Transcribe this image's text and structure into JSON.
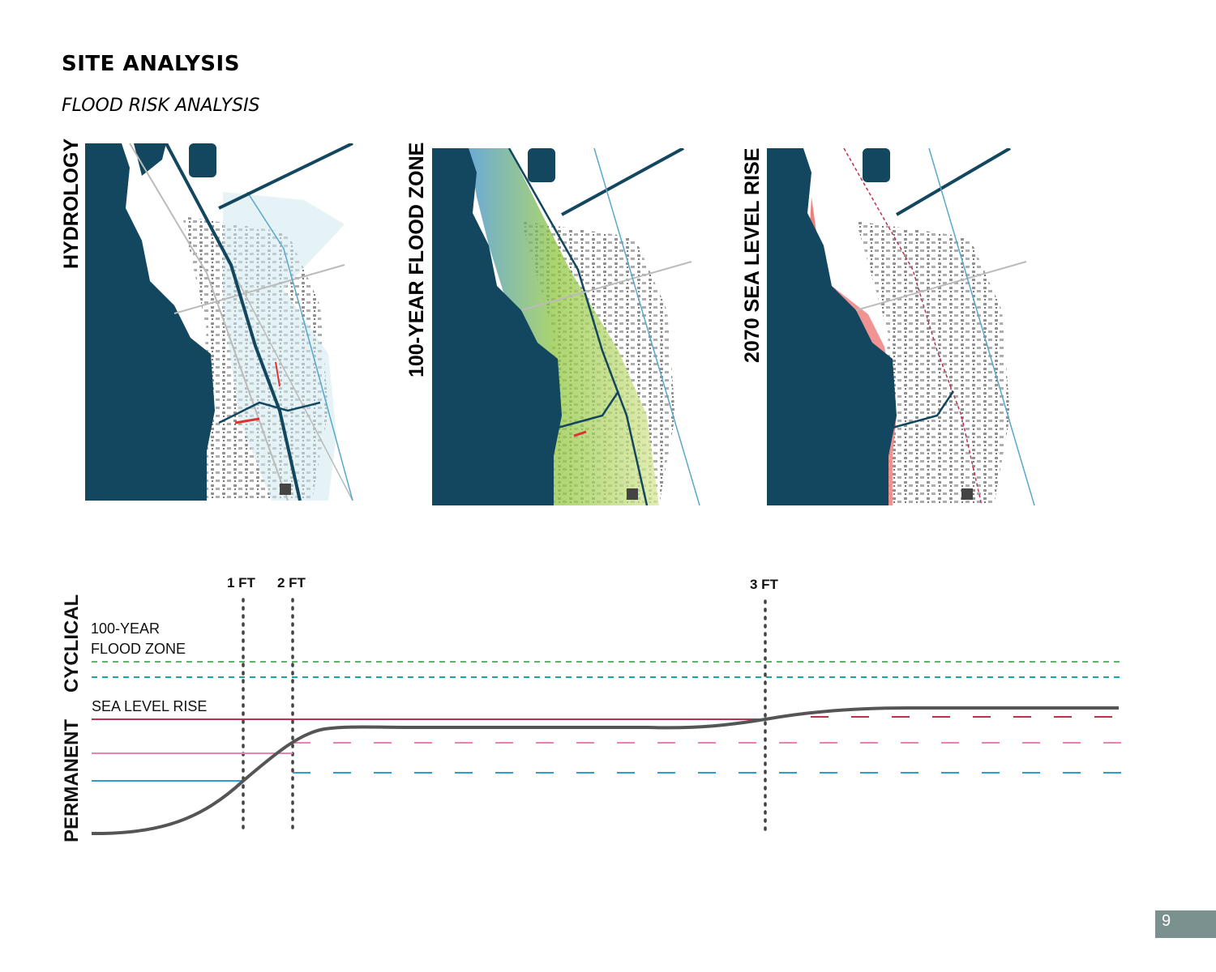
{
  "header": {
    "title": "SITE ANALYSIS",
    "subtitle": "FLOOD RISK ANALYSIS"
  },
  "maps": [
    {
      "label": "HYDROLOGY",
      "overlay": "hydrology",
      "overlay_color": "#5aa7c9"
    },
    {
      "label": "100-YEAR FLOOD ZONE",
      "overlay": "flood-zone",
      "overlay_color": "#8fc63f"
    },
    {
      "label": "2070 SEA LEVEL RISE",
      "overlay": "sea-level-rise",
      "overlay_color": "#f08080"
    }
  ],
  "timeline": {
    "markers": [
      {
        "label": "1 FT"
      },
      {
        "label": "2 FT"
      },
      {
        "label": "3 FT"
      }
    ],
    "side_labels": {
      "cyclical": "CYCLICAL",
      "permanent": "PERMANENT"
    },
    "flood_zone_label_line1": "100-YEAR",
    "flood_zone_label_line2": "FLOOD ZONE",
    "sea_level_rise_label": "SEA LEVEL RISE",
    "colors": {
      "water": "#12475f",
      "green": "#62b16a",
      "teal": "#1fa3a3",
      "crimson": "#c0304e",
      "pink": "#ee7fb3",
      "blue": "#2a9fcf",
      "curve": "#555555"
    }
  },
  "page_number": "9"
}
